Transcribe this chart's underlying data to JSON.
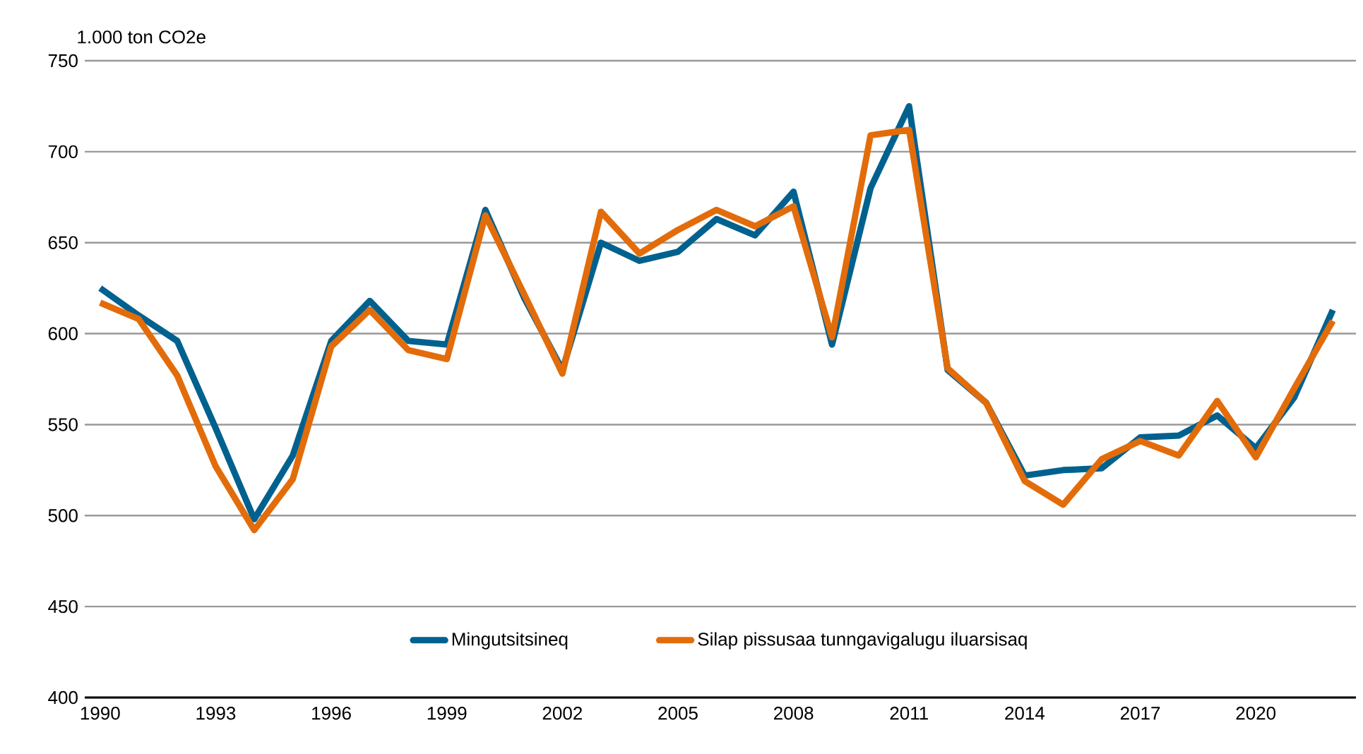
{
  "chart_data": {
    "type": "line",
    "ylabel": "1.000 ton CO2e",
    "x": [
      1990,
      1991,
      1992,
      1993,
      1994,
      1995,
      1996,
      1997,
      1998,
      1999,
      2000,
      2001,
      2002,
      2003,
      2004,
      2005,
      2006,
      2007,
      2008,
      2009,
      2010,
      2011,
      2012,
      2013,
      2014,
      2015,
      2016,
      2017,
      2018,
      2019,
      2020,
      2021,
      2022
    ],
    "series": [
      {
        "name": "Mingutsitsineq",
        "color": "#00618f",
        "values": [
          625,
          610,
          596,
          548,
          498,
          533,
          596,
          618,
          596,
          594,
          668,
          620,
          580,
          650,
          640,
          645,
          663,
          654,
          678,
          594,
          680,
          725,
          580,
          562,
          522,
          525,
          526,
          543,
          544,
          555,
          537,
          565,
          613
        ]
      },
      {
        "name": "Silap pissusaa tunngavigalugu iluarsisaq",
        "color": "#e36c0a",
        "values": [
          617,
          608,
          577,
          527,
          492,
          520,
          593,
          613,
          591,
          586,
          665,
          622,
          578,
          667,
          644,
          657,
          668,
          659,
          670,
          598,
          709,
          712,
          581,
          562,
          519,
          506,
          531,
          541,
          533,
          563,
          532,
          570,
          607
        ]
      }
    ],
    "xlim": [
      1989.6,
      2022.6
    ],
    "ylim": [
      400,
      750
    ],
    "xticks": [
      1990,
      1993,
      1996,
      1999,
      2002,
      2005,
      2008,
      2011,
      2014,
      2017,
      2020
    ],
    "yticks": [
      400,
      450,
      500,
      550,
      600,
      650,
      700,
      750
    ],
    "grid": "y",
    "legend": "bottom",
    "marker": "none",
    "line_style": "solid"
  }
}
